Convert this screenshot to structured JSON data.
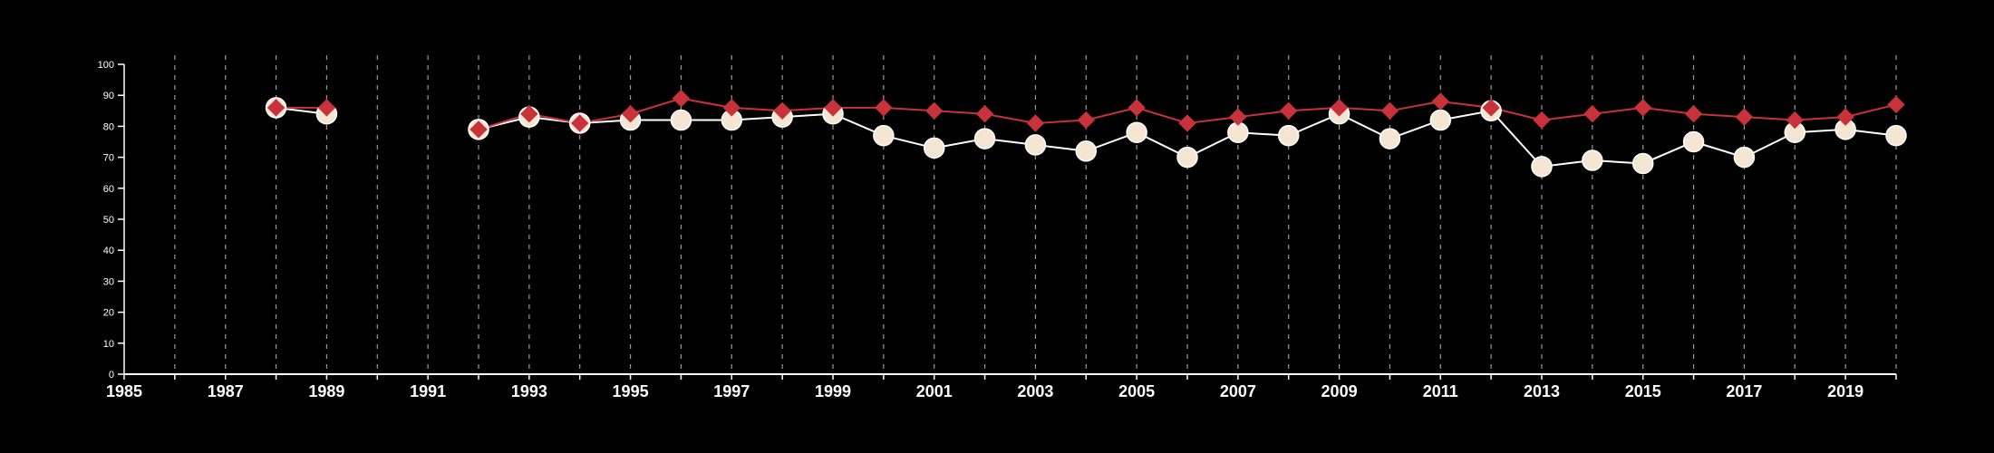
{
  "chart_data": {
    "type": "line",
    "x_ticks": [
      "1985",
      "1987",
      "1989",
      "1991",
      "1993",
      "1995",
      "1997",
      "1999",
      "2001",
      "2003",
      "2005",
      "2007",
      "2009",
      "2011",
      "2013",
      "2015",
      "2017",
      "2019"
    ],
    "y_ticks": [
      "0",
      "10",
      "20",
      "30",
      "40",
      "50",
      "60",
      "70",
      "80",
      "90",
      "100"
    ],
    "xlim": [
      1985,
      2020
    ],
    "ylim": [
      0,
      100
    ],
    "grid": "vertical dashed lines at each year",
    "series": [
      {
        "marker": "circle",
        "color": "#f5e6d3",
        "line_color": "#ffffff",
        "points": [
          {
            "x": 1988,
            "y": 86
          },
          {
            "x": 1989,
            "y": 84
          },
          {
            "x": 1992,
            "y": 79
          },
          {
            "x": 1993,
            "y": 83
          },
          {
            "x": 1994,
            "y": 81
          },
          {
            "x": 1995,
            "y": 82
          },
          {
            "x": 1996,
            "y": 82
          },
          {
            "x": 1997,
            "y": 82
          },
          {
            "x": 1998,
            "y": 83
          },
          {
            "x": 1999,
            "y": 84
          },
          {
            "x": 2000,
            "y": 77
          },
          {
            "x": 2001,
            "y": 73
          },
          {
            "x": 2002,
            "y": 76
          },
          {
            "x": 2003,
            "y": 74
          },
          {
            "x": 2004,
            "y": 72
          },
          {
            "x": 2005,
            "y": 78
          },
          {
            "x": 2006,
            "y": 70
          },
          {
            "x": 2007,
            "y": 78
          },
          {
            "x": 2008,
            "y": 77
          },
          {
            "x": 2009,
            "y": 84
          },
          {
            "x": 2010,
            "y": 76
          },
          {
            "x": 2011,
            "y": 82
          },
          {
            "x": 2012,
            "y": 85
          },
          {
            "x": 2013,
            "y": 67
          },
          {
            "x": 2014,
            "y": 69
          },
          {
            "x": 2015,
            "y": 68
          },
          {
            "x": 2016,
            "y": 75
          },
          {
            "x": 2017,
            "y": 70
          },
          {
            "x": 2018,
            "y": 78
          },
          {
            "x": 2019,
            "y": 79
          },
          {
            "x": 2020,
            "y": 77
          }
        ]
      },
      {
        "marker": "diamond",
        "color": "#c8323a",
        "line_color": "#c8323a",
        "points": [
          {
            "x": 1988,
            "y": 86
          },
          {
            "x": 1989,
            "y": 86
          },
          {
            "x": 1992,
            "y": 79
          },
          {
            "x": 1993,
            "y": 84
          },
          {
            "x": 1994,
            "y": 81
          },
          {
            "x": 1995,
            "y": 84
          },
          {
            "x": 1996,
            "y": 89
          },
          {
            "x": 1997,
            "y": 86
          },
          {
            "x": 1998,
            "y": 85
          },
          {
            "x": 1999,
            "y": 86
          },
          {
            "x": 2000,
            "y": 86
          },
          {
            "x": 2001,
            "y": 85
          },
          {
            "x": 2002,
            "y": 84
          },
          {
            "x": 2003,
            "y": 81
          },
          {
            "x": 2004,
            "y": 82
          },
          {
            "x": 2005,
            "y": 86
          },
          {
            "x": 2006,
            "y": 81
          },
          {
            "x": 2007,
            "y": 83
          },
          {
            "x": 2008,
            "y": 85
          },
          {
            "x": 2009,
            "y": 86
          },
          {
            "x": 2010,
            "y": 85
          },
          {
            "x": 2011,
            "y": 88
          },
          {
            "x": 2012,
            "y": 86
          },
          {
            "x": 2013,
            "y": 82
          },
          {
            "x": 2014,
            "y": 84
          },
          {
            "x": 2015,
            "y": 86
          },
          {
            "x": 2016,
            "y": 84
          },
          {
            "x": 2017,
            "y": 83
          },
          {
            "x": 2018,
            "y": 82
          },
          {
            "x": 2019,
            "y": 83
          },
          {
            "x": 2020,
            "y": 87
          }
        ]
      }
    ]
  }
}
